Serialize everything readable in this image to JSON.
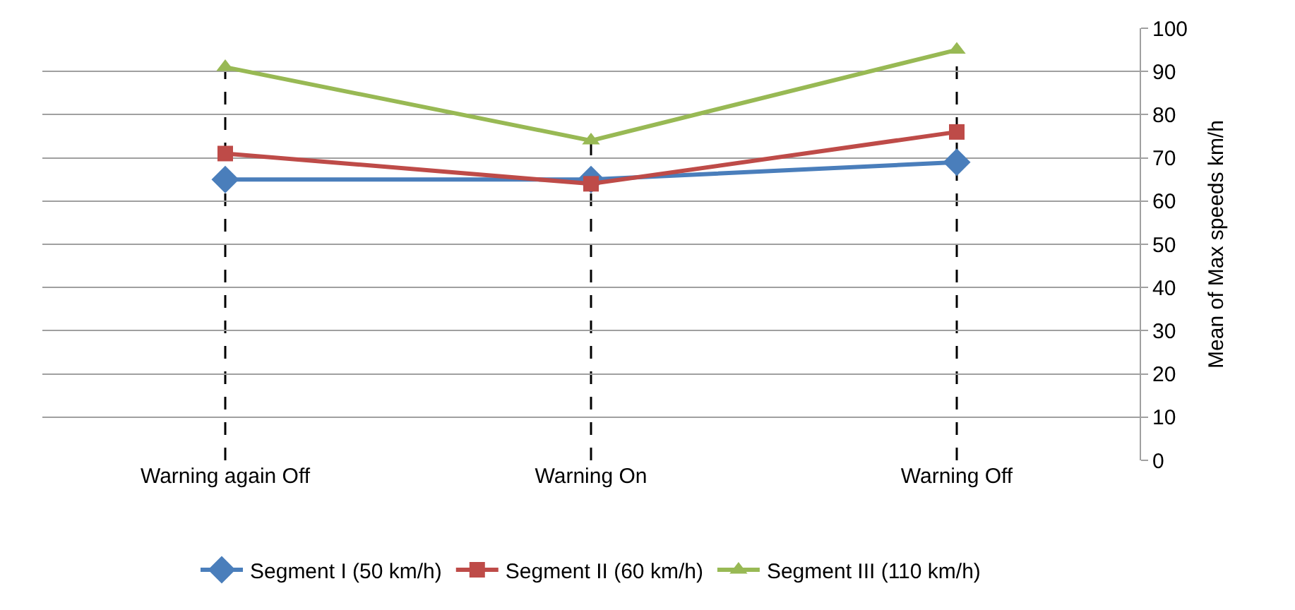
{
  "chart_data": {
    "type": "line",
    "categories": [
      "Warning again Off",
      "Warning On",
      "Warning Off"
    ],
    "ylabel": "Mean of Max speeds km/h",
    "ylim": [
      0,
      100
    ],
    "yticks": [
      0,
      10,
      20,
      30,
      40,
      50,
      60,
      70,
      80,
      90,
      100
    ],
    "grid": "y",
    "legend": "bottom",
    "series": [
      {
        "name": "Segment I (50 km/h)",
        "color": "#4a7ebb",
        "marker": "diamond",
        "values": [
          65,
          65,
          69
        ]
      },
      {
        "name": "Segment II (60 km/h)",
        "color": "#be4b48",
        "marker": "square",
        "values": [
          71,
          64,
          76
        ]
      },
      {
        "name": "Segment III (110 km/h)",
        "color": "#98b954",
        "marker": "triangle",
        "values": [
          91,
          74,
          95
        ]
      }
    ],
    "ref_lines": [
      {
        "axis": "x",
        "value": "Warning again Off",
        "color": "#000000",
        "line_style": "dashed"
      },
      {
        "axis": "x",
        "value": "Warning On",
        "color": "#000000",
        "line_style": "dashed"
      },
      {
        "axis": "x",
        "value": "Warning Off",
        "color": "#000000",
        "line_style": "dashed"
      }
    ]
  }
}
